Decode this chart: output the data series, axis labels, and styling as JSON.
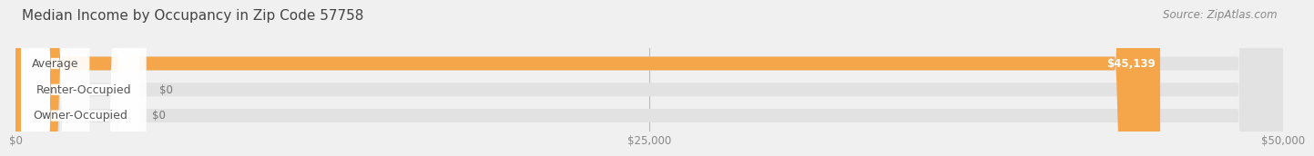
{
  "title": "Median Income by Occupancy in Zip Code 57758",
  "source": "Source: ZipAtlas.com",
  "categories": [
    "Owner-Occupied",
    "Renter-Occupied",
    "Average"
  ],
  "values": [
    0,
    0,
    45139
  ],
  "bar_colors": [
    "#5bbcb0",
    "#c9a8d4",
    "#f5a54a"
  ],
  "value_labels": [
    "$0",
    "$0",
    "$45,139"
  ],
  "xlim": [
    0,
    50000
  ],
  "xticks": [
    0,
    25000,
    50000
  ],
  "xtick_labels": [
    "$0",
    "$25,000",
    "$50,000"
  ],
  "background_color": "#f0f0f0",
  "bar_background_color": "#e2e2e2",
  "bar_height": 0.52,
  "title_fontsize": 11,
  "source_fontsize": 8.5,
  "label_fontsize": 9,
  "value_fontsize": 8.5,
  "tick_fontsize": 8.5
}
